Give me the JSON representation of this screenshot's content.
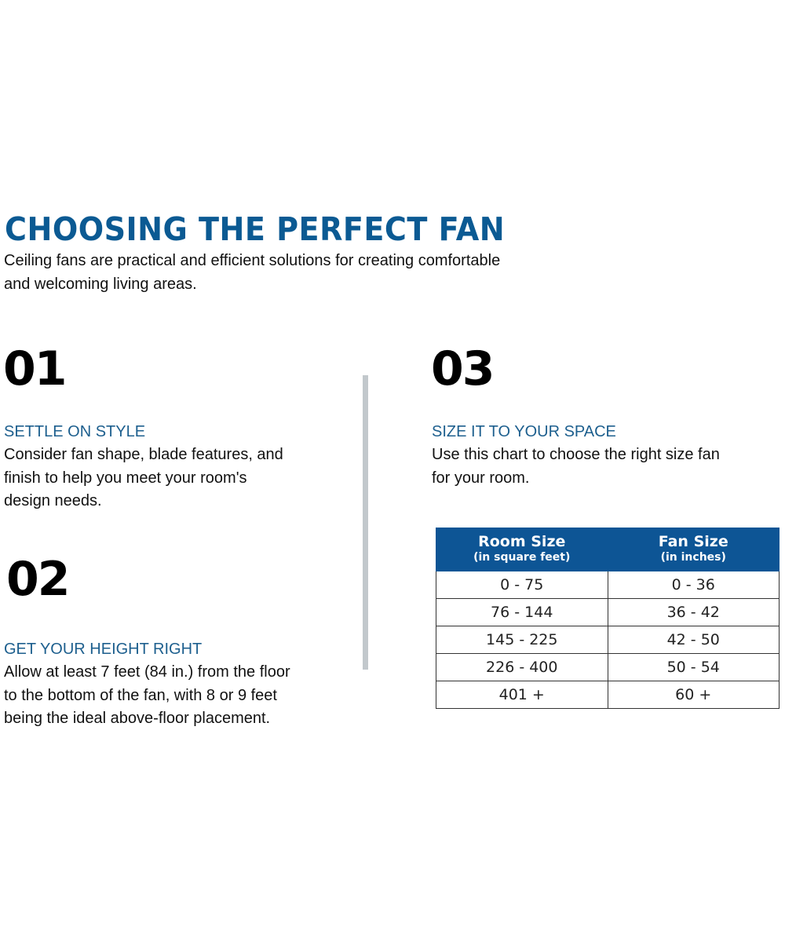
{
  "header": {
    "title": "CHOOSING THE PERFECT FAN",
    "intro_line1": "Ceiling fans are practical and efficient solutions for creating comfortable",
    "intro_line2": "and welcoming living areas."
  },
  "steps": [
    {
      "number": "01",
      "heading": "SETTLE ON STYLE",
      "lines": [
        "Consider fan shape, blade features, and",
        "finish to help you meet your room's",
        "design needs."
      ]
    },
    {
      "number": "02",
      "heading": "GET YOUR HEIGHT RIGHT",
      "lines": [
        "Allow at least 7 feet (84 in.) from the floor",
        "to the bottom of the fan, with 8 or 9 feet",
        "being the ideal above-floor placement."
      ]
    },
    {
      "number": "03",
      "heading": "SIZE IT TO YOUR SPACE",
      "lines": [
        "Use this chart to choose the right size fan",
        "for your room."
      ]
    }
  ],
  "size_table": {
    "columns": [
      {
        "label": "Room Size",
        "sublabel": "(in square feet)"
      },
      {
        "label": "Fan Size",
        "sublabel": "(in inches)"
      }
    ],
    "rows": [
      [
        "0 - 75",
        "0 - 36"
      ],
      [
        "76 - 144",
        "36 - 42"
      ],
      [
        "145 - 225",
        "42 - 50"
      ],
      [
        "226 - 400",
        "50 - 54"
      ],
      [
        "401 +",
        "60 +"
      ]
    ]
  },
  "colors": {
    "accent": "#0b5a93",
    "table_header": "#0d5595",
    "divider": "#c2c8cc"
  }
}
